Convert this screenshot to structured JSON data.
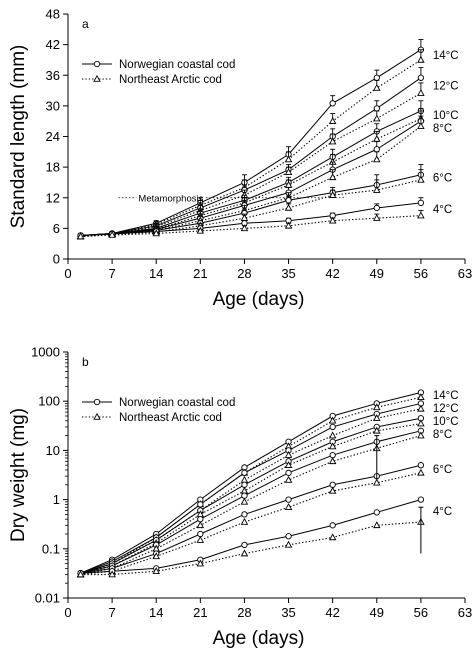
{
  "chart_data": [
    {
      "type": "line",
      "panel_label": "a",
      "xlabel": "Age (days)",
      "ylabel": "Standard length (mm)",
      "xlim": [
        0,
        63
      ],
      "ylim": [
        0,
        48
      ],
      "x_ticks": [
        0,
        7,
        14,
        21,
        28,
        35,
        42,
        49,
        56,
        63
      ],
      "y_ticks": [
        0,
        6,
        12,
        18,
        24,
        30,
        36,
        42,
        48
      ],
      "y_scale": "linear",
      "grid": false,
      "legend_position": "top-left",
      "legend": [
        {
          "label": "Norwegian coastal cod",
          "line_style": "solid",
          "marker": "circle"
        },
        {
          "label": "Northeast Arctic cod",
          "line_style": "dotted",
          "marker": "triangle"
        }
      ],
      "annotation": {
        "text": "Metamorphosis",
        "y": 12,
        "x_range": [
          8,
          44
        ]
      },
      "x": [
        2,
        7,
        14,
        21,
        28,
        35,
        42,
        49,
        56
      ],
      "series": [
        {
          "name": "14°C",
          "population": "Norwegian coastal cod",
          "values": [
            4.6,
            5.0,
            7.0,
            11.0,
            15.0,
            20.5,
            30.5,
            35.5,
            41.0
          ],
          "errors": [
            0,
            0,
            0.5,
            1,
            1.5,
            1.5,
            1.5,
            1.5,
            2
          ]
        },
        {
          "name": "14°C",
          "population": "Northeast Arctic cod",
          "values": [
            4.4,
            4.9,
            6.8,
            10.5,
            14.0,
            19.5,
            27.0,
            33.5,
            39.0
          ],
          "errors": [
            0,
            0,
            0.5,
            1,
            1.5,
            1.5,
            1.5,
            1.5,
            2
          ]
        },
        {
          "name": "12°C",
          "population": "Norwegian coastal cod",
          "values": [
            4.6,
            5.0,
            6.5,
            10.0,
            13.5,
            17.5,
            24.0,
            29.5,
            35.5
          ],
          "errors": [
            0,
            0,
            0.5,
            1,
            1,
            1,
            1.5,
            1.5,
            2
          ]
        },
        {
          "name": "12°C",
          "population": "Northeast Arctic cod",
          "values": [
            4.4,
            4.9,
            6.3,
            9.5,
            12.5,
            17.0,
            23.0,
            27.5,
            32.5
          ],
          "errors": [
            0,
            0,
            0.5,
            1,
            1,
            1,
            1.5,
            1.5,
            2
          ]
        },
        {
          "name": "10°C",
          "population": "Norwegian coastal cod",
          "values": [
            4.6,
            5.0,
            6.0,
            9.0,
            11.5,
            15.0,
            20.0,
            25.0,
            29.0
          ],
          "errors": [
            0,
            0,
            0.5,
            0.8,
            1,
            1,
            1.5,
            1.5,
            2
          ]
        },
        {
          "name": "10°C",
          "population": "Northeast Arctic cod",
          "values": [
            4.4,
            4.9,
            5.8,
            8.5,
            11.0,
            14.5,
            19.0,
            23.5,
            27.5
          ],
          "errors": [
            0,
            0,
            0.5,
            0.8,
            1,
            1,
            1.5,
            1.5,
            2
          ]
        },
        {
          "name": "8°C",
          "population": "Norwegian coastal cod",
          "values": [
            4.6,
            5.0,
            5.8,
            8.0,
            10.5,
            13.0,
            17.5,
            21.5,
            27.0
          ],
          "errors": [
            0,
            0,
            0.5,
            0.8,
            1,
            1,
            1.5,
            1.5,
            2
          ]
        },
        {
          "name": "8°C",
          "population": "Northeast Arctic cod",
          "values": [
            4.4,
            4.9,
            5.6,
            7.5,
            9.5,
            12.0,
            16.0,
            19.5,
            26.0
          ],
          "errors": [
            0,
            0,
            0.5,
            0.8,
            1,
            1,
            1.5,
            1.5,
            2
          ]
        },
        {
          "name": "6°C",
          "population": "Norwegian coastal cod",
          "values": [
            4.6,
            5.0,
            5.6,
            7.0,
            9.0,
            11.5,
            13.0,
            14.5,
            16.5
          ],
          "errors": [
            0,
            0,
            0.3,
            0.5,
            0.8,
            0.8,
            1,
            1,
            1
          ]
        },
        {
          "name": "6°C",
          "population": "Northeast Arctic cod",
          "values": [
            4.4,
            4.8,
            5.3,
            6.5,
            8.0,
            10.0,
            12.5,
            13.5,
            15.5
          ],
          "errors": [
            0,
            0,
            0.3,
            0.5,
            0.8,
            0.8,
            1,
            3,
            3
          ]
        },
        {
          "name": "4°C",
          "population": "Norwegian coastal cod",
          "values": [
            4.6,
            4.9,
            5.4,
            6.0,
            7.0,
            7.5,
            8.5,
            10.0,
            11.0
          ],
          "errors": [
            0,
            0,
            0.3,
            0.3,
            0.5,
            0.5,
            0.5,
            0.8,
            1
          ]
        },
        {
          "name": "4°C",
          "population": "Northeast Arctic cod",
          "values": [
            4.4,
            4.7,
            5.0,
            5.5,
            6.0,
            6.5,
            7.5,
            8.0,
            8.5
          ],
          "errors": [
            0,
            0,
            0.3,
            0.3,
            0.5,
            0.5,
            0.5,
            0.8,
            1
          ]
        }
      ]
    },
    {
      "type": "line",
      "panel_label": "b",
      "xlabel": "Age (days)",
      "ylabel": "Dry weight (mg)",
      "xlim": [
        0,
        63
      ],
      "ylim": [
        0.01,
        1000
      ],
      "x_ticks": [
        0,
        7,
        14,
        21,
        28,
        35,
        42,
        49,
        56,
        63
      ],
      "y_ticks": [
        0.01,
        0.1,
        1,
        10,
        100,
        1000
      ],
      "y_tick_labels": [
        "0.01",
        "0.1",
        "1",
        "10",
        "100",
        "1000"
      ],
      "y_scale": "log",
      "grid": false,
      "legend_position": "top-left",
      "legend": [
        {
          "label": "Norwegian coastal cod",
          "line_style": "solid",
          "marker": "circle"
        },
        {
          "label": "Northeast Arctic cod",
          "line_style": "dotted",
          "marker": "triangle"
        }
      ],
      "x": [
        2,
        7,
        14,
        21,
        28,
        35,
        42,
        49,
        56
      ],
      "series": [
        {
          "name": "14°C",
          "population": "Norwegian coastal cod",
          "values": [
            0.032,
            0.06,
            0.2,
            1.0,
            4.5,
            15,
            50,
            90,
            150
          ]
        },
        {
          "name": "14°C",
          "population": "Northeast Arctic cod",
          "values": [
            0.03,
            0.05,
            0.17,
            0.8,
            3.5,
            12,
            40,
            75,
            120
          ]
        },
        {
          "name": "12°C",
          "population": "Norwegian coastal cod",
          "values": [
            0.032,
            0.055,
            0.17,
            0.8,
            3.5,
            10,
            30,
            55,
            90
          ]
        },
        {
          "name": "12°C",
          "population": "Northeast Arctic cod",
          "values": [
            0.03,
            0.05,
            0.15,
            0.6,
            2.5,
            8,
            20,
            45,
            70
          ]
        },
        {
          "name": "10°C",
          "population": "Norwegian coastal cod",
          "values": [
            0.032,
            0.05,
            0.15,
            0.6,
            2.0,
            6,
            15,
            30,
            45
          ]
        },
        {
          "name": "10°C",
          "population": "Northeast Arctic cod",
          "values": [
            0.03,
            0.045,
            0.13,
            0.5,
            1.5,
            5,
            12,
            25,
            35
          ]
        },
        {
          "name": "8°C",
          "population": "Norwegian coastal cod",
          "values": [
            0.032,
            0.045,
            0.12,
            0.4,
            1.2,
            3.5,
            8,
            15,
            25
          ]
        },
        {
          "name": "8°C",
          "population": "Northeast Arctic cod",
          "values": [
            0.03,
            0.04,
            0.1,
            0.3,
            0.9,
            2.5,
            6,
            11,
            20
          ]
        },
        {
          "name": "6°C",
          "population": "Norwegian coastal cod",
          "values": [
            0.032,
            0.04,
            0.08,
            0.2,
            0.5,
            1.0,
            2.0,
            3.0,
            5.0
          ]
        },
        {
          "name": "6°C",
          "population": "Northeast Arctic cod",
          "values": [
            0.03,
            0.035,
            0.07,
            0.15,
            0.35,
            0.7,
            1.5,
            2.2,
            3.5
          ]
        },
        {
          "name": "4°C",
          "population": "Norwegian coastal cod",
          "values": [
            0.032,
            0.035,
            0.04,
            0.06,
            0.12,
            0.18,
            0.3,
            0.55,
            1.0
          ]
        },
        {
          "name": "4°C",
          "population": "Northeast Arctic cod",
          "values": [
            0.03,
            0.03,
            0.035,
            0.05,
            0.08,
            0.12,
            0.17,
            0.3,
            0.35
          ]
        }
      ],
      "errors": [
        {
          "name": "4°C",
          "population": "Northeast Arctic cod",
          "x": 56,
          "low": 0.08,
          "high": 0.7
        },
        {
          "name": "8°C",
          "population": "Northeast Arctic cod",
          "x": 49,
          "low": 2.5,
          "high": 20
        }
      ]
    }
  ]
}
